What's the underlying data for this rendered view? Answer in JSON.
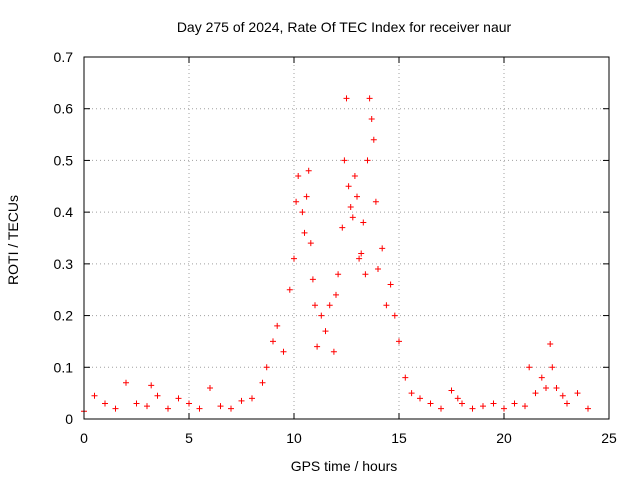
{
  "chart_data": {
    "type": "scatter",
    "title": "Day 275 of 2024, Rate Of TEC Index for receiver naur",
    "xlabel": "GPS time / hours",
    "ylabel": "ROTI / TECUs",
    "xlim": [
      0,
      25
    ],
    "ylim": [
      0,
      0.7
    ],
    "xticks": [
      "0",
      "5",
      "10",
      "15",
      "20",
      "25"
    ],
    "yticks": [
      "0",
      "0.1",
      "0.2",
      "0.3",
      "0.4",
      "0.5",
      "0.6",
      "0.7"
    ],
    "grid": true,
    "marker": "+",
    "series": [
      {
        "name": "ROTI",
        "color": "#ff0000",
        "x": [
          0.0,
          0.5,
          1.0,
          1.5,
          2.0,
          2.5,
          3.0,
          3.2,
          3.5,
          4.0,
          4.5,
          5.0,
          5.5,
          6.0,
          6.5,
          7.0,
          7.5,
          8.0,
          8.5,
          8.7,
          9.0,
          9.2,
          9.5,
          9.8,
          10.0,
          10.1,
          10.2,
          10.4,
          10.5,
          10.6,
          10.7,
          10.8,
          10.9,
          11.0,
          11.1,
          11.3,
          11.5,
          11.7,
          11.9,
          12.0,
          12.1,
          12.3,
          12.4,
          12.5,
          12.6,
          12.7,
          12.8,
          12.9,
          13.0,
          13.1,
          13.2,
          13.3,
          13.4,
          13.5,
          13.6,
          13.7,
          13.8,
          13.9,
          14.0,
          14.2,
          14.4,
          14.6,
          14.8,
          15.0,
          15.3,
          15.6,
          16.0,
          16.5,
          17.0,
          17.5,
          17.8,
          18.0,
          18.5,
          19.0,
          19.5,
          20.0,
          20.5,
          21.0,
          21.2,
          21.5,
          21.8,
          22.0,
          22.2,
          22.3,
          22.5,
          22.8,
          23.0,
          23.5,
          24.0
        ],
        "y": [
          0.015,
          0.045,
          0.03,
          0.02,
          0.07,
          0.03,
          0.025,
          0.065,
          0.045,
          0.02,
          0.04,
          0.03,
          0.02,
          0.06,
          0.025,
          0.02,
          0.035,
          0.04,
          0.07,
          0.1,
          0.15,
          0.18,
          0.13,
          0.25,
          0.31,
          0.42,
          0.47,
          0.4,
          0.36,
          0.43,
          0.48,
          0.34,
          0.27,
          0.22,
          0.14,
          0.2,
          0.17,
          0.22,
          0.13,
          0.24,
          0.28,
          0.37,
          0.5,
          0.62,
          0.45,
          0.41,
          0.39,
          0.47,
          0.43,
          0.31,
          0.32,
          0.38,
          0.28,
          0.5,
          0.62,
          0.58,
          0.54,
          0.42,
          0.29,
          0.33,
          0.22,
          0.26,
          0.2,
          0.15,
          0.08,
          0.05,
          0.04,
          0.03,
          0.02,
          0.055,
          0.04,
          0.03,
          0.02,
          0.025,
          0.03,
          0.02,
          0.03,
          0.025,
          0.1,
          0.05,
          0.08,
          0.06,
          0.145,
          0.1,
          0.06,
          0.045,
          0.03,
          0.05,
          0.02
        ]
      }
    ]
  }
}
